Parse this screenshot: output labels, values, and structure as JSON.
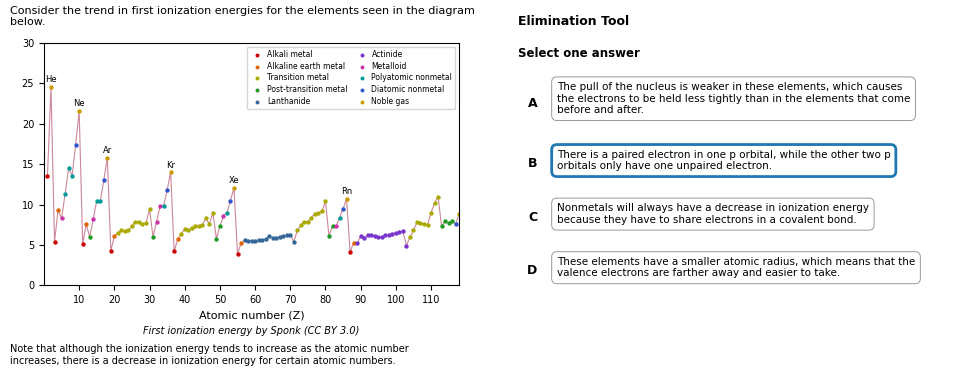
{
  "chart_data": {
    "type": "scatter",
    "title": "Consider the trend in first ionization energies for the elements seen in the diagram\nbelow.",
    "subtitle": "First ionization energy by Sponk (CC BY 3.0)",
    "x_label": "Atomic number (Z)",
    "xlim": [
      0,
      118
    ],
    "xticks": [
      10,
      20,
      30,
      40,
      50,
      60,
      70,
      80,
      90,
      100,
      110
    ],
    "ylim": [
      0,
      30
    ],
    "yticks": [
      0,
      5,
      10,
      15,
      20,
      25,
      30
    ],
    "marker": "o",
    "legend": "upper right",
    "series": [
      {
        "type": "line",
        "color": "#cc8899",
        "line_style": "solid",
        "x": [
          1,
          2,
          3,
          4,
          5,
          6,
          7,
          8,
          9,
          10,
          11,
          12,
          13,
          14,
          15,
          16,
          17,
          18,
          19,
          20,
          21,
          22,
          23,
          24,
          25,
          26,
          27,
          28,
          29,
          30,
          31,
          32,
          33,
          34,
          35,
          36,
          37,
          38,
          39,
          40,
          41,
          42,
          43,
          44,
          45,
          46,
          47,
          48,
          49,
          50,
          51,
          52,
          53,
          54,
          55,
          56,
          57,
          58,
          59,
          60,
          61,
          62,
          63,
          64,
          65,
          66,
          67,
          68,
          69,
          70,
          71,
          72,
          73,
          74,
          75,
          76,
          77,
          78,
          79,
          80,
          81,
          82,
          83,
          84,
          85,
          86,
          87,
          88,
          89,
          90,
          91,
          92,
          93,
          94,
          95,
          96,
          97,
          98,
          99,
          100,
          101,
          102,
          103,
          104,
          105,
          106,
          107,
          108,
          109,
          110,
          111,
          112,
          113,
          114,
          115,
          116,
          117,
          118
        ],
        "values": [
          13.6,
          24.6,
          5.4,
          9.3,
          8.3,
          11.3,
          14.5,
          13.6,
          17.4,
          21.6,
          5.1,
          7.6,
          6.0,
          8.2,
          10.5,
          10.4,
          13.0,
          15.8,
          4.3,
          6.1,
          6.5,
          6.8,
          6.7,
          6.8,
          7.4,
          7.9,
          7.9,
          7.6,
          7.7,
          9.4,
          6.0,
          7.9,
          9.8,
          9.8,
          11.8,
          14.0,
          4.2,
          5.7,
          6.4,
          7.0,
          6.8,
          7.1,
          7.3,
          7.4,
          7.5,
          8.3,
          7.6,
          9.0,
          5.8,
          7.3,
          8.6,
          9.0,
          10.5,
          12.1,
          3.9,
          5.2,
          5.6,
          5.5,
          5.5,
          5.5,
          5.6,
          5.6,
          5.7,
          6.1,
          5.9,
          5.9,
          6.0,
          6.1,
          6.2,
          6.3,
          5.4,
          6.8,
          7.5,
          7.9,
          7.9,
          8.4,
          8.9,
          8.96,
          9.2,
          10.4,
          6.1,
          7.4,
          7.3,
          8.4,
          9.5,
          10.7,
          4.1,
          5.3,
          5.2,
          6.1,
          5.9,
          6.2,
          6.3,
          6.1,
          6.0,
          6.0,
          6.2,
          6.3,
          6.4,
          6.5,
          6.6,
          6.7,
          4.9,
          6.0,
          6.8,
          7.8,
          7.7,
          7.6,
          7.5,
          9.0,
          10.2,
          11.0,
          7.3,
          8.0,
          7.7,
          8.0,
          7.6,
          8.9
        ]
      },
      {
        "name": "Alkali metal",
        "color": "#cc0000",
        "x": [
          1,
          3,
          11,
          19,
          37,
          55,
          87
        ],
        "values": [
          13.6,
          5.4,
          5.1,
          4.3,
          4.2,
          3.9,
          4.1
        ]
      },
      {
        "name": "Alkaline earth metal",
        "color": "#dd6600",
        "x": [
          4,
          12,
          20,
          38,
          56,
          88
        ],
        "values": [
          9.3,
          7.6,
          6.1,
          5.7,
          5.2,
          5.3
        ]
      },
      {
        "name": "Transition metal",
        "color": "#aaaa00",
        "x": [
          21,
          22,
          23,
          24,
          25,
          26,
          27,
          28,
          29,
          30,
          39,
          40,
          41,
          42,
          43,
          44,
          45,
          46,
          47,
          48,
          72,
          73,
          74,
          75,
          76,
          77,
          78,
          79,
          80,
          104,
          105,
          106,
          107,
          108,
          109,
          110,
          111,
          112
        ],
        "values": [
          6.5,
          6.8,
          6.7,
          6.8,
          7.4,
          7.9,
          7.9,
          7.6,
          7.7,
          9.4,
          6.4,
          7.0,
          6.8,
          7.1,
          7.3,
          7.4,
          7.5,
          8.3,
          7.6,
          9.0,
          6.8,
          7.5,
          7.9,
          7.9,
          8.4,
          8.9,
          8.96,
          9.2,
          10.4,
          6.0,
          6.8,
          7.8,
          7.7,
          7.6,
          7.5,
          9.0,
          10.2,
          11.0
        ]
      },
      {
        "name": "Post-transition metal",
        "color": "#229922",
        "x": [
          13,
          31,
          49,
          50,
          81,
          82,
          113,
          114,
          115,
          116
        ],
        "values": [
          6.0,
          6.0,
          5.8,
          7.3,
          6.1,
          7.4,
          7.3,
          8.0,
          7.7,
          8.0
        ]
      },
      {
        "name": "Lanthanide",
        "color": "#336699",
        "x": [
          57,
          58,
          59,
          60,
          61,
          62,
          63,
          64,
          65,
          66,
          67,
          68,
          69,
          70,
          71
        ],
        "values": [
          5.6,
          5.5,
          5.5,
          5.5,
          5.6,
          5.6,
          5.7,
          6.1,
          5.9,
          5.9,
          6.0,
          6.1,
          6.2,
          6.3,
          5.4
        ]
      },
      {
        "name": "Actinide",
        "color": "#7733cc",
        "x": [
          89,
          90,
          91,
          92,
          93,
          94,
          95,
          96,
          97,
          98,
          99,
          100,
          101,
          102,
          103
        ],
        "values": [
          5.2,
          6.1,
          5.9,
          6.2,
          6.3,
          6.1,
          6.0,
          6.0,
          6.2,
          6.3,
          6.4,
          6.5,
          6.6,
          6.7,
          4.9
        ]
      },
      {
        "name": "Metalloid",
        "color": "#cc33aa",
        "x": [
          5,
          14,
          32,
          33,
          51,
          83
        ],
        "values": [
          8.3,
          8.2,
          7.9,
          9.8,
          8.6,
          7.3
        ]
      },
      {
        "name": "Polyatomic nonmetal",
        "color": "#009999",
        "x": [
          6,
          7,
          8,
          15,
          16,
          34,
          52,
          84
        ],
        "values": [
          11.3,
          14.5,
          13.6,
          10.5,
          10.4,
          9.8,
          9.0,
          8.4
        ]
      },
      {
        "name": "Diatomic nonmetal",
        "color": "#3355cc",
        "x": [
          9,
          17,
          35,
          53,
          85,
          117
        ],
        "values": [
          17.4,
          13.0,
          11.8,
          10.5,
          9.5,
          7.6
        ]
      },
      {
        "name": "Noble gas",
        "color": "#cc9900",
        "x": [
          2,
          10,
          18,
          36,
          54,
          86,
          118
        ],
        "values": [
          24.6,
          21.6,
          15.8,
          14.0,
          12.1,
          10.7,
          8.9
        ]
      }
    ],
    "annotations": [
      {
        "text": "He",
        "x": 2,
        "y": 24.6
      },
      {
        "text": "Ne",
        "x": 10,
        "y": 21.6
      },
      {
        "text": "Ar",
        "x": 18,
        "y": 15.8
      },
      {
        "text": "Kr",
        "x": 36,
        "y": 14.0
      },
      {
        "text": "Xe",
        "x": 54,
        "y": 12.1
      },
      {
        "text": "Rn",
        "x": 86,
        "y": 10.7
      }
    ],
    "note": "Note that although the ionization energy tends to increase as the atomic number\nincreases, there is a decrease in ionization energy for certain atomic numbers.",
    "side_title": "Elimination Tool",
    "side_prompt": "Select one answer",
    "answers": [
      {
        "letter": "A",
        "text": "The pull of the nucleus is weaker in these elements, which causes\nthe electrons to be held less tightly than in the elements that come\nbefore and after.",
        "highlighted": false
      },
      {
        "letter": "B",
        "text": "There is a paired electron in one p orbital, while the other two p\norbitals only have one unpaired electron.",
        "highlighted": true
      },
      {
        "letter": "C",
        "text": "Nonmetals will always have a decrease in ionization energy\nbecause they have to share electrons in a covalent bond.",
        "highlighted": false
      },
      {
        "letter": "D",
        "text": "These elements have a smaller atomic radius, which means that the\nvalence electrons are farther away and easier to take.",
        "highlighted": false
      }
    ]
  }
}
